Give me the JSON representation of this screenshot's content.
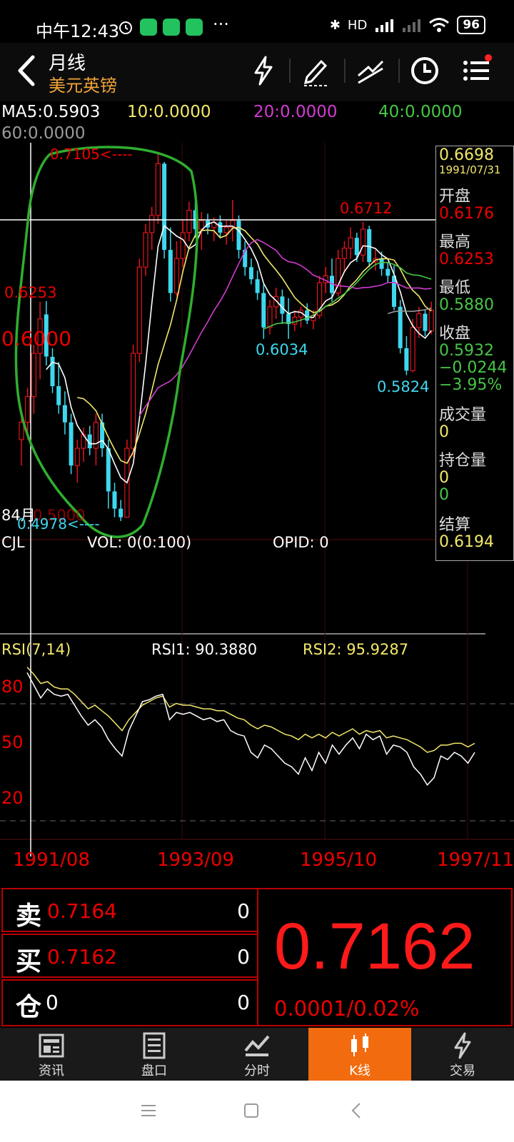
{
  "status": {
    "time": "中午12:43",
    "dots": "···",
    "signal": "HD",
    "battery": "96"
  },
  "header": {
    "period": "月线",
    "instrument": "美元英镑"
  },
  "ma": {
    "ma5": "MA5:0.5903",
    "ma10": "10:0.0000",
    "ma20": "20:0.0000",
    "ma40": "40:0.0000",
    "ma60": "60:0.0000"
  },
  "colors": {
    "up": "#e0141e",
    "down": "#3ed7ee",
    "ma5": "#ffffff",
    "ma10": "#f3e86b",
    "ma20": "#d13bd0",
    "ma40": "#46c646",
    "ma60": "#9a9a9a",
    "annotation": "#2fae2f"
  },
  "price_labels": {
    "high_marker": "0.7105<----",
    "top_right": "0.6712",
    "left_level": "0.6253",
    "axis_mid": "0.6000",
    "low_mid": "0.6034",
    "low_right": "0.5824",
    "month_tag": "84月",
    "low_marker": "0.4978<----",
    "low_axis": "0.5000"
  },
  "info_panel": {
    "price": "0.6698",
    "date": "1991/07/31",
    "open_label": "开盘",
    "open": "0.6176",
    "high_label": "最高",
    "high": "0.6253",
    "low_label": "最低",
    "low": "0.5880",
    "close_label": "收盘",
    "close": "0.5932",
    "change": "−0.0244",
    "change_pct": "−3.95%",
    "volume_label": "成交量",
    "volume": "0",
    "oi_label": "持仓量",
    "oi": "0",
    "oi2": "0",
    "settle_label": "结算",
    "settle": "0.6194"
  },
  "volume_panel": {
    "cjl": "CJL",
    "vol": "VOL: 0(0:100)",
    "opid": "OPID: 0"
  },
  "rsi_panel": {
    "title": "RSI(7,14)",
    "rsi1": "RSI1: 90.3880",
    "rsi2": "RSI2: 95.9287",
    "lvl80": "80",
    "lvl50": "50",
    "lvl20": "20"
  },
  "dates": [
    "1991/08",
    "1993/09",
    "1995/10",
    "1997/11"
  ],
  "chart_data": {
    "type": "candlestick",
    "candles": [
      {
        "o": 0.545,
        "h": 0.56,
        "l": 0.53,
        "c": 0.555
      },
      {
        "o": 0.555,
        "h": 0.575,
        "l": 0.545,
        "c": 0.57
      },
      {
        "o": 0.57,
        "h": 0.6,
        "l": 0.56,
        "c": 0.595
      },
      {
        "o": 0.595,
        "h": 0.625,
        "l": 0.58,
        "c": 0.615
      },
      {
        "o": 0.6176,
        "h": 0.6253,
        "l": 0.588,
        "c": 0.5932
      },
      {
        "o": 0.593,
        "h": 0.598,
        "l": 0.572,
        "c": 0.576
      },
      {
        "o": 0.576,
        "h": 0.59,
        "l": 0.56,
        "c": 0.565
      },
      {
        "o": 0.565,
        "h": 0.573,
        "l": 0.548,
        "c": 0.555
      },
      {
        "o": 0.555,
        "h": 0.56,
        "l": 0.525,
        "c": 0.53
      },
      {
        "o": 0.53,
        "h": 0.545,
        "l": 0.52,
        "c": 0.54
      },
      {
        "o": 0.54,
        "h": 0.552,
        "l": 0.532,
        "c": 0.548
      },
      {
        "o": 0.548,
        "h": 0.553,
        "l": 0.536,
        "c": 0.54
      },
      {
        "o": 0.54,
        "h": 0.56,
        "l": 0.53,
        "c": 0.555
      },
      {
        "o": 0.555,
        "h": 0.56,
        "l": 0.535,
        "c": 0.54
      },
      {
        "o": 0.54,
        "h": 0.545,
        "l": 0.505,
        "c": 0.515
      },
      {
        "o": 0.515,
        "h": 0.52,
        "l": 0.5,
        "c": 0.505
      },
      {
        "o": 0.505,
        "h": 0.51,
        "l": 0.4978,
        "c": 0.5
      },
      {
        "o": 0.5,
        "h": 0.545,
        "l": 0.5,
        "c": 0.54
      },
      {
        "o": 0.54,
        "h": 0.6,
        "l": 0.535,
        "c": 0.595
      },
      {
        "o": 0.595,
        "h": 0.65,
        "l": 0.59,
        "c": 0.645
      },
      {
        "o": 0.645,
        "h": 0.67,
        "l": 0.64,
        "c": 0.665
      },
      {
        "o": 0.665,
        "h": 0.68,
        "l": 0.655,
        "c": 0.675
      },
      {
        "o": 0.675,
        "h": 0.7105,
        "l": 0.67,
        "c": 0.705
      },
      {
        "o": 0.705,
        "h": 0.706,
        "l": 0.65,
        "c": 0.655
      },
      {
        "o": 0.655,
        "h": 0.668,
        "l": 0.625,
        "c": 0.63
      },
      {
        "o": 0.63,
        "h": 0.66,
        "l": 0.628,
        "c": 0.65
      },
      {
        "o": 0.65,
        "h": 0.672,
        "l": 0.645,
        "c": 0.665
      },
      {
        "o": 0.665,
        "h": 0.683,
        "l": 0.66,
        "c": 0.678
      },
      {
        "o": 0.678,
        "h": 0.684,
        "l": 0.662,
        "c": 0.667
      },
      {
        "o": 0.667,
        "h": 0.677,
        "l": 0.655,
        "c": 0.672
      },
      {
        "o": 0.672,
        "h": 0.676,
        "l": 0.664,
        "c": 0.668
      },
      {
        "o": 0.668,
        "h": 0.674,
        "l": 0.66,
        "c": 0.671
      },
      {
        "o": 0.671,
        "h": 0.675,
        "l": 0.662,
        "c": 0.665
      },
      {
        "o": 0.665,
        "h": 0.672,
        "l": 0.658,
        "c": 0.668
      },
      {
        "o": 0.668,
        "h": 0.684,
        "l": 0.66,
        "c": 0.672
      },
      {
        "o": 0.672,
        "h": 0.675,
        "l": 0.65,
        "c": 0.655
      },
      {
        "o": 0.655,
        "h": 0.66,
        "l": 0.64,
        "c": 0.645
      },
      {
        "o": 0.645,
        "h": 0.65,
        "l": 0.635,
        "c": 0.638
      },
      {
        "o": 0.638,
        "h": 0.643,
        "l": 0.626,
        "c": 0.63
      },
      {
        "o": 0.63,
        "h": 0.635,
        "l": 0.6034,
        "c": 0.61
      },
      {
        "o": 0.61,
        "h": 0.626,
        "l": 0.606,
        "c": 0.622
      },
      {
        "o": 0.622,
        "h": 0.633,
        "l": 0.615,
        "c": 0.628
      },
      {
        "o": 0.628,
        "h": 0.632,
        "l": 0.612,
        "c": 0.618
      },
      {
        "o": 0.618,
        "h": 0.627,
        "l": 0.6034,
        "c": 0.612
      },
      {
        "o": 0.612,
        "h": 0.62,
        "l": 0.608,
        "c": 0.616
      },
      {
        "o": 0.616,
        "h": 0.622,
        "l": 0.61,
        "c": 0.62
      },
      {
        "o": 0.62,
        "h": 0.624,
        "l": 0.612,
        "c": 0.614
      },
      {
        "o": 0.614,
        "h": 0.62,
        "l": 0.609,
        "c": 0.617
      },
      {
        "o": 0.617,
        "h": 0.64,
        "l": 0.615,
        "c": 0.636
      },
      {
        "o": 0.636,
        "h": 0.645,
        "l": 0.63,
        "c": 0.64
      },
      {
        "o": 0.64,
        "h": 0.65,
        "l": 0.625,
        "c": 0.63
      },
      {
        "o": 0.63,
        "h": 0.655,
        "l": 0.628,
        "c": 0.65
      },
      {
        "o": 0.65,
        "h": 0.66,
        "l": 0.642,
        "c": 0.656
      },
      {
        "o": 0.656,
        "h": 0.668,
        "l": 0.65,
        "c": 0.662
      },
      {
        "o": 0.662,
        "h": 0.665,
        "l": 0.648,
        "c": 0.652
      },
      {
        "o": 0.652,
        "h": 0.6712,
        "l": 0.648,
        "c": 0.667
      },
      {
        "o": 0.667,
        "h": 0.669,
        "l": 0.645,
        "c": 0.648
      },
      {
        "o": 0.648,
        "h": 0.655,
        "l": 0.643,
        "c": 0.65
      },
      {
        "o": 0.65,
        "h": 0.654,
        "l": 0.64,
        "c": 0.644
      },
      {
        "o": 0.644,
        "h": 0.648,
        "l": 0.636,
        "c": 0.64
      },
      {
        "o": 0.64,
        "h": 0.646,
        "l": 0.62,
        "c": 0.622
      },
      {
        "o": 0.622,
        "h": 0.626,
        "l": 0.595,
        "c": 0.598
      },
      {
        "o": 0.598,
        "h": 0.605,
        "l": 0.5824,
        "c": 0.585
      },
      {
        "o": 0.585,
        "h": 0.615,
        "l": 0.584,
        "c": 0.61
      },
      {
        "o": 0.61,
        "h": 0.622,
        "l": 0.604,
        "c": 0.618
      },
      {
        "o": 0.618,
        "h": 0.62,
        "l": 0.605,
        "c": 0.608
      },
      {
        "o": 0.608,
        "h": 0.625,
        "l": 0.606,
        "c": 0.62
      }
    ],
    "rsi1": [
      92,
      85,
      78,
      83,
      80,
      79,
      80,
      74,
      68,
      63,
      66,
      62,
      55,
      50,
      46,
      60,
      68,
      76,
      77,
      79,
      80,
      66,
      70,
      69,
      70,
      68,
      66,
      67,
      65,
      66,
      60,
      58,
      57,
      48,
      45,
      52,
      50,
      46,
      42,
      40,
      36,
      45,
      38,
      48,
      42,
      52,
      47,
      52,
      56,
      50,
      58,
      55,
      57,
      47,
      52,
      51,
      48,
      40,
      36,
      30,
      34,
      46,
      44,
      48,
      46,
      42,
      48
    ],
    "rsi2": [
      95,
      91,
      86,
      87,
      84,
      83,
      83,
      80,
      76,
      72,
      74,
      71,
      68,
      64,
      60,
      66,
      70,
      74,
      76,
      78,
      79,
      73,
      75,
      74,
      74,
      73,
      72,
      72,
      71,
      71,
      69,
      67,
      66,
      63,
      61,
      63,
      62,
      60,
      58,
      57,
      55,
      58,
      56,
      58,
      56,
      59,
      57,
      59,
      61,
      58,
      60,
      59,
      60,
      56,
      57,
      56,
      55,
      53,
      51,
      48,
      49,
      52,
      52,
      53,
      53,
      51,
      53
    ],
    "ylim": [
      0.4978,
      0.7105
    ]
  },
  "quote": {
    "sell_label": "卖",
    "sell_price": "0.7164",
    "sell_qty": "0",
    "buy_label": "买",
    "buy_price": "0.7162",
    "buy_qty": "0",
    "pos_label": "仓",
    "pos_val": "0",
    "pos_qty": "0",
    "last": "0.7162",
    "change": "0.0001/0.02%"
  },
  "tabs": [
    {
      "label": "资讯",
      "icon": "news-icon"
    },
    {
      "label": "盘口",
      "icon": "order-book-icon"
    },
    {
      "label": "分时",
      "icon": "intraday-chart-icon"
    },
    {
      "label": "K线",
      "icon": "candlestick-icon"
    },
    {
      "label": "交易",
      "icon": "trade-icon"
    }
  ]
}
